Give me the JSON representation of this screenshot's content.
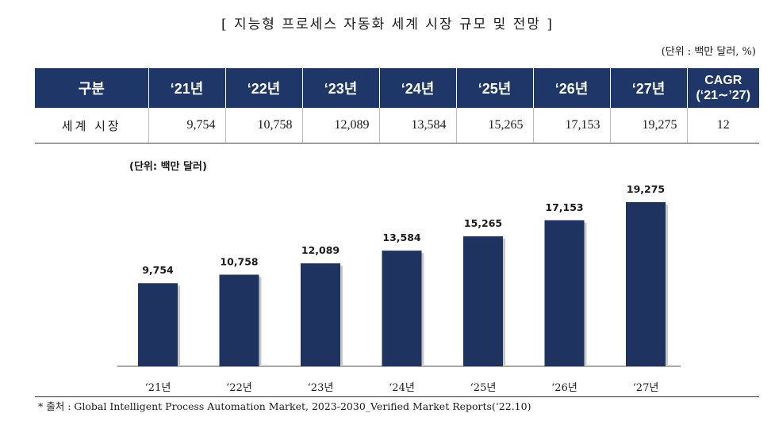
{
  "title": "[ 지능형 프로세스 자동화 세계 시장 규모 및 전망 ]",
  "unit": "(단위 : 백만 달러, %)",
  "table": {
    "headers": [
      "구분",
      "‘21년",
      "‘22년",
      "‘23년",
      "‘24년",
      "‘25년",
      "‘26년",
      "‘27년"
    ],
    "cagr_header_line1": "CAGR",
    "cagr_header_line2": "(‘21∼’27)",
    "row_label": "세계 시장",
    "values": [
      "9,754",
      "10,758",
      "12,089",
      "13,584",
      "15,265",
      "17,153",
      "19,275"
    ],
    "cagr": "12"
  },
  "chart_unit": "(단위: 백만 달러)",
  "chart_data": {
    "type": "bar",
    "categories": [
      "‘21년",
      "‘22년",
      "‘23년",
      "‘24년",
      "‘25년",
      "‘26년",
      "‘27년"
    ],
    "values": [
      9754,
      10758,
      12089,
      13584,
      15265,
      17153,
      19275
    ],
    "value_labels": [
      "9,754",
      "10,758",
      "12,089",
      "13,584",
      "15,265",
      "17,153",
      "19,275"
    ],
    "bar_color": "#1f3361",
    "grid": false,
    "legend": "none"
  },
  "source": "* 출처 : Global Intelligent Process Automation Market, 2023-2030_Verified Market Reports(‘22.10)"
}
